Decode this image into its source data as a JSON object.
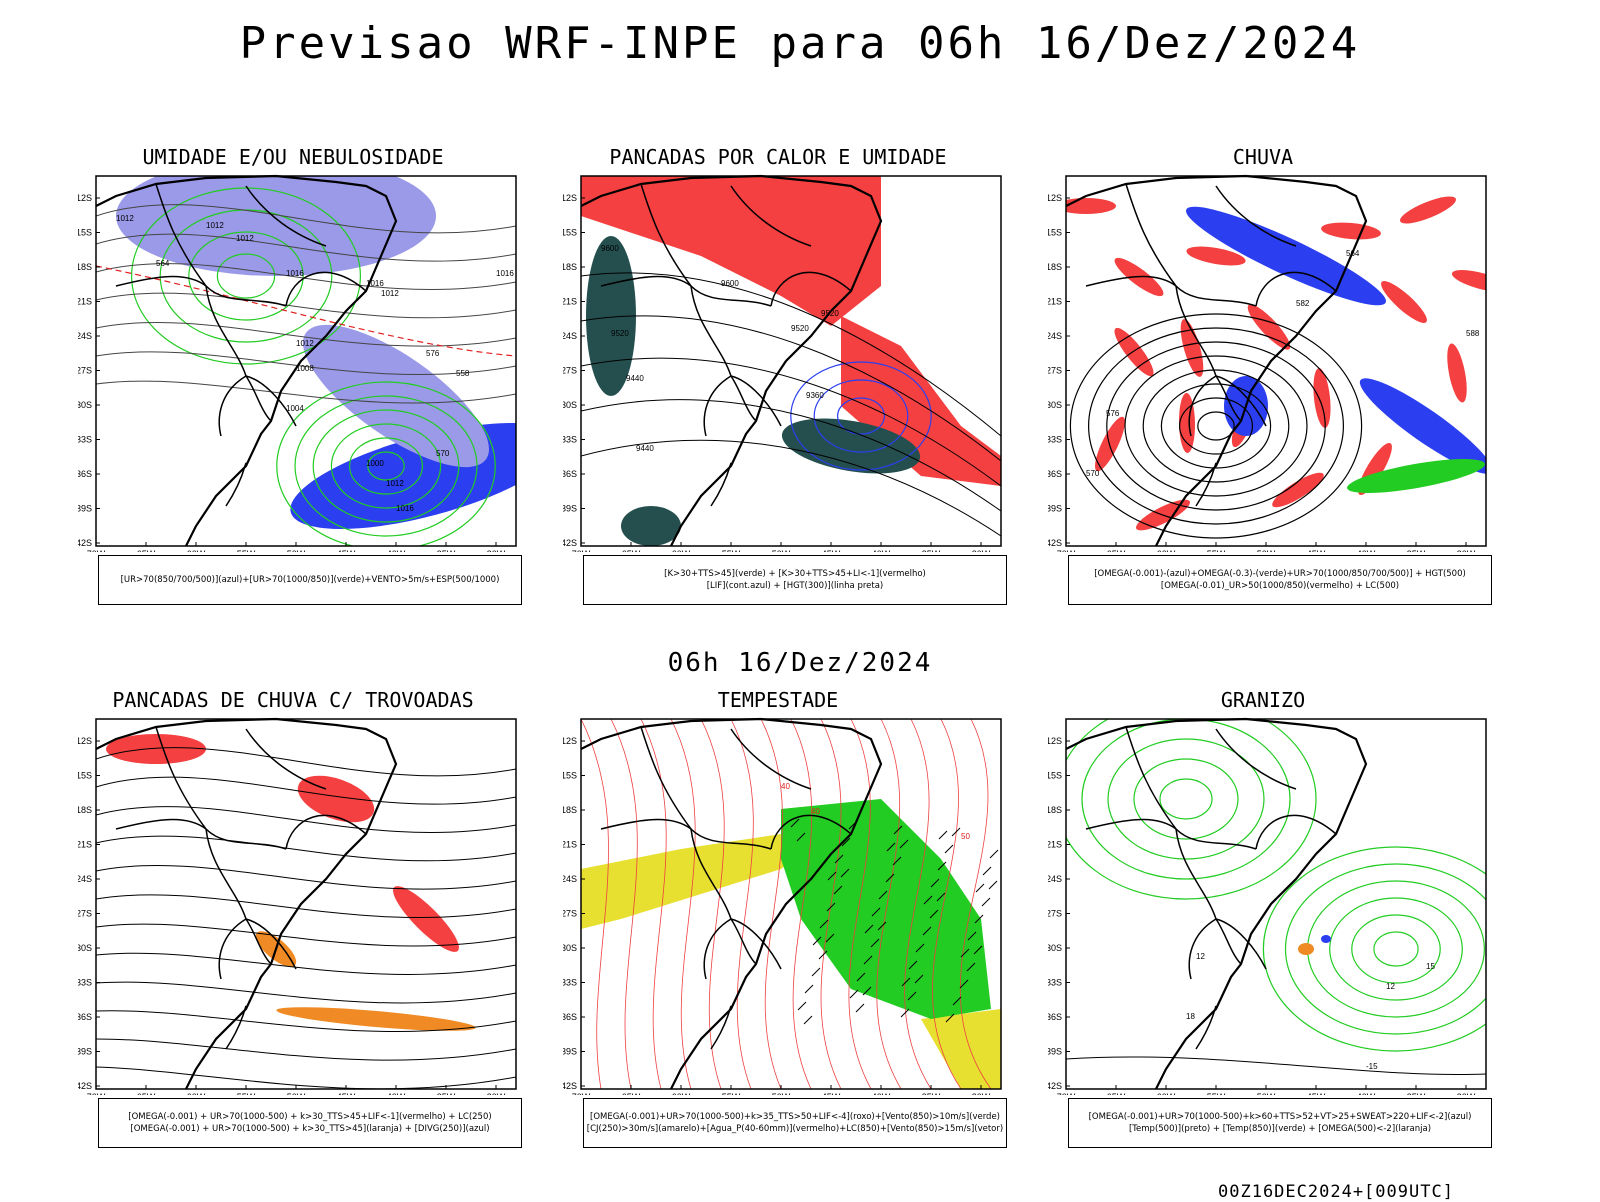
{
  "main_title": "Previsao WRF-INPE  para 06h 16/Dez/2024",
  "mid_title": "06h 16/Dez/2024",
  "footer_stamp": "00Z16DEC2024+[009UTC]",
  "lat_labels": [
    "12S",
    "15S",
    "18S",
    "21S",
    "24S",
    "27S",
    "30S",
    "33S",
    "36S",
    "39S",
    "42S"
  ],
  "lon_labels": [
    "70W",
    "65W",
    "60W",
    "55W",
    "50W",
    "45W",
    "40W",
    "35W",
    "30W"
  ],
  "colors": {
    "red": "#f44040",
    "green": "#22cc22",
    "blue": "#2b3ff0",
    "lavender": "#9a9ae8",
    "dark": "#254f4f",
    "orange": "#ef8a25",
    "yellow": "#e8e030"
  },
  "panels": [
    {
      "title": "UMIDADE E/OU NEBULOSIDADE",
      "legend": [
        "[UR>70(850/700/500)](azul)+[UR>70(1000/850)](verde)+VENTO>5m/s+ESP(500/1000)"
      ],
      "labels": [
        "1012",
        "1012",
        "1012",
        "1016",
        "1016",
        "1012",
        "1016",
        "1012",
        "1008",
        "1004",
        "1000",
        "1012",
        "1016",
        "570",
        "564",
        "558",
        "576"
      ]
    },
    {
      "title": "PANCADAS POR CALOR E UMIDADE",
      "legend": [
        "[K>30+TTS>45](verde) + [K>30+TTS>45+LI<-1](vermelho)",
        "[LIF](cont.azul) + [HGT(300)](linha preta)"
      ],
      "labels": [
        "9600",
        "9600",
        "9520",
        "9520",
        "9520",
        "9440",
        "9440",
        "9360"
      ]
    },
    {
      "title": "CHUVA",
      "legend": [
        "[OMEGA(-0.001)-(azul)+OMEGA(-0.3)-(verde)+UR>70(1000/850/700/500)] + HGT(500)",
        "[OMEGA(-0.01)_UR>50(1000/850)(vermelho) + LC(500)"
      ],
      "labels": [
        "582",
        "576",
        "570",
        "588",
        "564"
      ]
    },
    {
      "title": "PANCADAS DE CHUVA C/ TROVOADAS",
      "legend": [
        "[OMEGA(-0.001) + UR>70(1000-500) + k>30_TTS>45+LIF<-1](vermelho) + LC(250)",
        "[OMEGA(-0.001) + UR>70(1000-500) + k>30_TTS>45](laranja) + [DIVG(250)](azul)"
      ],
      "labels": []
    },
    {
      "title": "TEMPESTADE",
      "legend": [
        "[OMEGA(-0.001)+UR>70(1000-500)+k>35_TTS>50+LIF<-4](roxo)+[Vento(850)>10m/s](verde)",
        "[CJ(250)>30m/s](amarelo)+[Agua_P(40-60mm)](vermelho)+LC(850)+[Vento(850)>15m/s](vetor)"
      ],
      "labels": [
        "40",
        "40",
        "50"
      ]
    },
    {
      "title": "GRANIZO",
      "legend": [
        "[OMEGA(-0.001)+UR>70(1000-500)+k>60+TTS>52+VT>25+SWEAT>220+LIF<-2](azul)",
        "[Temp(500)](preto) + [Temp(850)](verde) + [OMEGA(500)<-2](laranja)"
      ],
      "labels": [
        "12",
        "15",
        "12",
        "-15",
        "18"
      ]
    }
  ]
}
